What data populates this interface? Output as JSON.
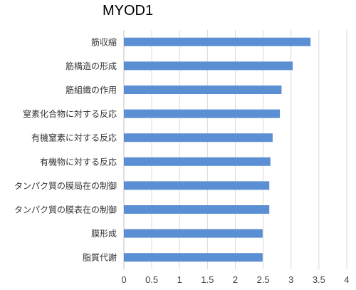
{
  "chart_data": {
    "type": "bar",
    "orientation": "horizontal",
    "title": "MYOD1",
    "categories": [
      "筋収縮",
      "筋構造の形成",
      "筋組織の作用",
      "窒素化合物に対する反応",
      "有機窒素に対する反応",
      "有機物に対する反応",
      "タンパク質の膜局在の制御",
      "タンパク質の膜表在の制御",
      "膜形成",
      "脂質代謝"
    ],
    "values": [
      3.35,
      3.03,
      2.83,
      2.8,
      2.67,
      2.63,
      2.61,
      2.61,
      2.49,
      2.49
    ],
    "xlim": [
      0,
      4
    ],
    "xticks": [
      "0",
      "0.5",
      "1",
      "1.5",
      "2",
      "2.5",
      "3",
      "3.5",
      "4"
    ],
    "xlabel": "",
    "ylabel": "",
    "grid": "vertical",
    "legend": "none",
    "bar_color": "#5b8fd3",
    "grid_color": "#d9d9d9"
  }
}
